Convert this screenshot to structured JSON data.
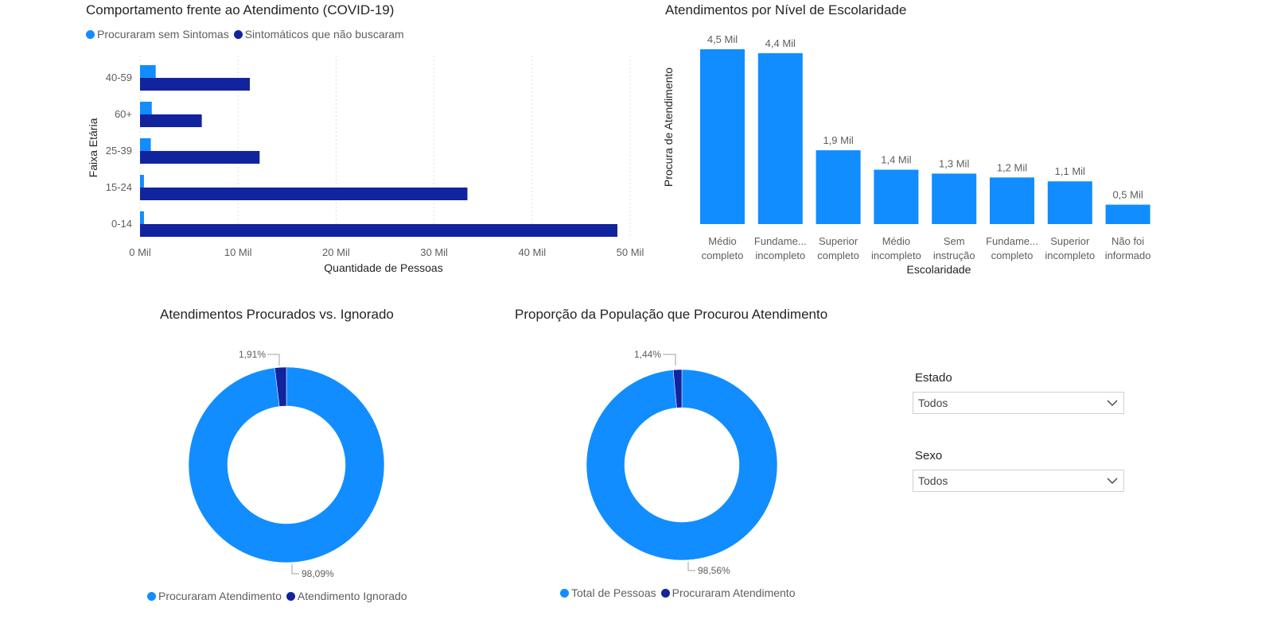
{
  "colors": {
    "light_blue": "#118dff",
    "dark_blue": "#12239e",
    "grid": "#e1dfdd",
    "label": "#605e5c"
  },
  "bar_chart": {
    "title": "Comportamento frente ao Atendimento (COVID-19)",
    "xlabel": "Quantidade de Pessoas",
    "ylabel": "Faixa Etária",
    "legend": [
      "Procuraram sem Sintomas",
      "Sintomáticos que não buscaram"
    ]
  },
  "col_chart": {
    "title": "Atendimentos por Nível de Escolaridade",
    "xlabel": "Escolaridade",
    "ylabel": "Procura de Atendimento"
  },
  "donut1": {
    "title": "Atendimentos Procurados vs. Ignorado",
    "legend": [
      "Procuraram Atendimento",
      "Atendimento Ignorado"
    ]
  },
  "donut2": {
    "title": "Proporção da População que Procurou Atendimento",
    "legend": [
      "Total de Pessoas",
      "Procuraram Atendimento"
    ]
  },
  "slicers": {
    "estado": {
      "label": "Estado",
      "value": "Todos"
    },
    "sexo": {
      "label": "Sexo",
      "value": "Todos"
    }
  },
  "chart_data": [
    {
      "type": "bar",
      "orientation": "horizontal",
      "title": "Comportamento frente ao Atendimento (COVID-19)",
      "xlabel": "Quantidade de Pessoas",
      "ylabel": "Faixa Etária",
      "categories": [
        "40-59",
        "60+",
        "25-39",
        "15-24",
        "0-14"
      ],
      "series": [
        {
          "name": "Procuraram sem Sintomas",
          "values": [
            1.6,
            1.2,
            1.1,
            0.4,
            0.4
          ]
        },
        {
          "name": "Sintomáticos que não buscaram",
          "values": [
            11.2,
            6.3,
            12.2,
            33.4,
            48.7
          ]
        }
      ],
      "xticks": [
        "0 Mil",
        "10 Mil",
        "20 Mil",
        "30 Mil",
        "40 Mil",
        "50 Mil"
      ],
      "xlim": [
        0,
        50
      ],
      "grid": true,
      "legend_position": "top-left"
    },
    {
      "type": "bar",
      "title": "Atendimentos por Nível de Escolaridade",
      "xlabel": "Escolaridade",
      "ylabel": "Procura de Atendimento",
      "categories": [
        [
          "Médio",
          "completo"
        ],
        [
          "Fundame...",
          "incompleto"
        ],
        [
          "Superior",
          "completo"
        ],
        [
          "Médio",
          "incompleto"
        ],
        [
          "Sem",
          "instrução"
        ],
        [
          "Fundame...",
          "completo"
        ],
        [
          "Superior",
          "incompleto"
        ],
        [
          "Não foi",
          "informado"
        ]
      ],
      "values": [
        4.5,
        4.4,
        1.9,
        1.4,
        1.3,
        1.2,
        1.1,
        0.5
      ],
      "data_labels": [
        "4,5 Mil",
        "4,4 Mil",
        "1,9 Mil",
        "1,4 Mil",
        "1,3 Mil",
        "1,2 Mil",
        "1,1 Mil",
        "0,5 Mil"
      ],
      "ylim": [
        0,
        4.5
      ]
    },
    {
      "type": "pie",
      "title": "Atendimentos Procurados vs. Ignorado",
      "series": [
        {
          "name": "Procuraram Atendimento",
          "value": 98.09,
          "label": "98,09%"
        },
        {
          "name": "Atendimento Ignorado",
          "value": 1.91,
          "label": "1,91%"
        }
      ]
    },
    {
      "type": "pie",
      "title": "Proporção da População que Procurou Atendimento",
      "series": [
        {
          "name": "Total de Pessoas",
          "value": 98.56,
          "label": "98,56%"
        },
        {
          "name": "Procuraram Atendimento",
          "value": 1.44,
          "label": "1,44%"
        }
      ]
    }
  ]
}
